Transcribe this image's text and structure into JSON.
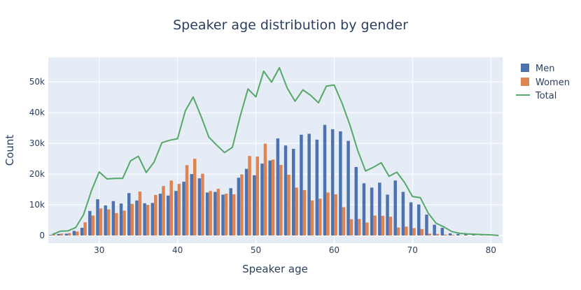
{
  "chart_data": {
    "type": "bar",
    "title": "Speaker age distribution by gender",
    "xlabel": "Speaker age",
    "ylabel": "Count",
    "xlim": [
      23.5,
      81.5
    ],
    "ylim": [
      -2500,
      58000
    ],
    "x_ticks": [
      30,
      40,
      50,
      60,
      70,
      80
    ],
    "y_ticks": [
      0,
      10000,
      20000,
      30000,
      40000,
      50000
    ],
    "y_tick_labels": [
      "0",
      "10k",
      "20k",
      "30k",
      "40k",
      "50k"
    ],
    "grid": true,
    "legend_position": "top-right",
    "x": [
      24,
      25,
      26,
      27,
      28,
      29,
      30,
      31,
      32,
      33,
      34,
      35,
      36,
      37,
      38,
      39,
      40,
      41,
      42,
      43,
      44,
      45,
      46,
      47,
      48,
      49,
      50,
      51,
      52,
      53,
      54,
      55,
      56,
      57,
      58,
      59,
      60,
      61,
      62,
      63,
      64,
      65,
      66,
      67,
      68,
      69,
      70,
      71,
      72,
      73,
      74,
      75,
      76,
      77,
      78,
      79,
      80,
      81
    ],
    "series": [
      {
        "name": "Men",
        "type": "bar",
        "color": "#4c72b0",
        "values": [
          200,
          500,
          600,
          1500,
          2500,
          8000,
          11800,
          9800,
          11200,
          10400,
          13800,
          11400,
          10500,
          10600,
          13600,
          13000,
          14500,
          17500,
          20000,
          18600,
          14000,
          14200,
          13300,
          15400,
          18800,
          21700,
          19600,
          23400,
          24400,
          31600,
          29300,
          28200,
          32800,
          33100,
          31200,
          36000,
          34600,
          33900,
          30800,
          22300,
          17000,
          15600,
          17200,
          13300,
          17900,
          14200,
          10800,
          10100,
          6800,
          3500,
          2500,
          700,
          500,
          400,
          400,
          200,
          100,
          50
        ]
      },
      {
        "name": "Women",
        "type": "bar",
        "color": "#dd8452",
        "values": [
          600,
          600,
          800,
          1300,
          4300,
          6500,
          8800,
          8500,
          7300,
          8100,
          10300,
          14300,
          10000,
          13200,
          16100,
          17900,
          16800,
          22900,
          25000,
          20100,
          14500,
          15200,
          13600,
          13400,
          19900,
          25900,
          25700,
          29900,
          24700,
          23000,
          19800,
          15600,
          14800,
          11400,
          12000,
          14000,
          13400,
          9200,
          5300,
          5400,
          4200,
          6500,
          6400,
          6100,
          2600,
          2900,
          2400,
          2100,
          600,
          500,
          300,
          200,
          100,
          50,
          50,
          0,
          0,
          0
        ]
      },
      {
        "name": "Total",
        "type": "line",
        "color": "#55a868",
        "values": [
          300,
          1400,
          1500,
          2600,
          6800,
          14500,
          20700,
          18400,
          18600,
          18600,
          24300,
          25800,
          20500,
          23900,
          30200,
          31000,
          31500,
          40600,
          45100,
          38800,
          32000,
          29400,
          27000,
          28700,
          38800,
          47700,
          45100,
          53500,
          49900,
          54600,
          48000,
          43700,
          47400,
          45600,
          43200,
          48600,
          49000,
          43100,
          36000,
          27700,
          21000,
          22200,
          23700,
          19300,
          20600,
          17200,
          12700,
          12300,
          7300,
          4000,
          2800,
          1300,
          700,
          500,
          400,
          300,
          200,
          0
        ]
      }
    ]
  }
}
